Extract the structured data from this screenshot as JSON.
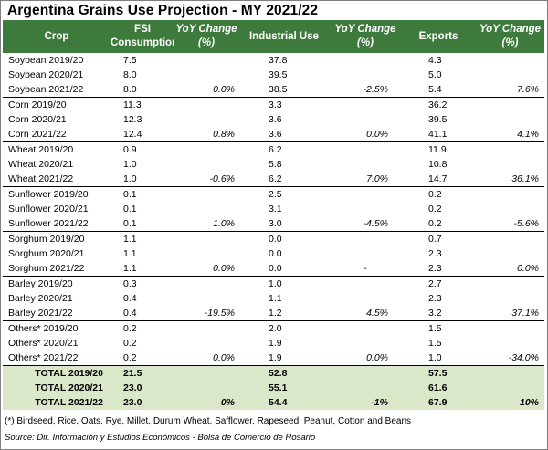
{
  "title": "Argentina Grains Use Projection - MY 2021/22",
  "headers": {
    "crop": "Crop",
    "fsi": "FSI Consumption",
    "fsi_yoy": "YoY Change (%)",
    "industrial": "Industrial Use",
    "industrial_yoy": "YoY Change (%)",
    "exports": "Exports",
    "exports_yoy": "YoY Change (%)"
  },
  "groups": [
    {
      "rows": [
        [
          "Soybean 2019/20",
          "7.5",
          "",
          "37.8",
          "",
          "4.3",
          ""
        ],
        [
          "Soybean 2020/21",
          "8.0",
          "",
          "39.5",
          "",
          "5.0",
          ""
        ],
        [
          "Soybean 2021/22",
          "8.0",
          "0.0%",
          "38.5",
          "-2.5%",
          "5.4",
          "7.6%"
        ]
      ]
    },
    {
      "rows": [
        [
          "Corn 2019/20",
          "11.3",
          "",
          "3.3",
          "",
          "36.2",
          ""
        ],
        [
          "Corn 2020/21",
          "12.3",
          "",
          "3.6",
          "",
          "39.5",
          ""
        ],
        [
          "Corn 2021/22",
          "12.4",
          "0.8%",
          "3.6",
          "0.0%",
          "41.1",
          "4.1%"
        ]
      ]
    },
    {
      "rows": [
        [
          "Wheat 2019/20",
          "0.9",
          "",
          "6.2",
          "",
          "11.9",
          ""
        ],
        [
          "Wheat 2020/21",
          "1.0",
          "",
          "5.8",
          "",
          "10.8",
          ""
        ],
        [
          "Wheat 2021/22",
          "1.0",
          "-0.6%",
          "6.2",
          "7.0%",
          "14.7",
          "36.1%"
        ]
      ]
    },
    {
      "rows": [
        [
          "Sunflower 2019/20",
          "0.1",
          "",
          "2.5",
          "",
          "0.2",
          ""
        ],
        [
          "Sunflower 2020/21",
          "0.1",
          "",
          "3.1",
          "",
          "0.2",
          ""
        ],
        [
          "Sunflower 2021/22",
          "0.1",
          "1.0%",
          "3.0",
          "-4.5%",
          "0.2",
          "-5.6%"
        ]
      ]
    },
    {
      "rows": [
        [
          "Sorghum 2019/20",
          "1.1",
          "",
          "0.0",
          "",
          "0.7",
          ""
        ],
        [
          "Sorghum 2020/21",
          "1.1",
          "",
          "0.0",
          "",
          "2.3",
          ""
        ],
        [
          "Sorghum 2021/22",
          "1.1",
          "0.0%",
          "0.0",
          "-",
          "2.3",
          "0.0%"
        ]
      ]
    },
    {
      "rows": [
        [
          "Barley 2019/20",
          "0.3",
          "",
          "1.0",
          "",
          "2.7",
          ""
        ],
        [
          "Barley 2020/21",
          "0.4",
          "",
          "1.1",
          "",
          "2.3",
          ""
        ],
        [
          "Barley 2021/22",
          "0.4",
          "-19.5%",
          "1.2",
          "4.5%",
          "3.2",
          "37.1%"
        ]
      ]
    },
    {
      "rows": [
        [
          "Others* 2019/20",
          "0.2",
          "",
          "2.0",
          "",
          "1.5",
          ""
        ],
        [
          "Others* 2020/21",
          "0.2",
          "",
          "1.9",
          "",
          "1.5",
          ""
        ],
        [
          "Others* 2021/22",
          "0.2",
          "0.0%",
          "1.9",
          "0.0%",
          "1.0",
          "-34.0%"
        ]
      ]
    }
  ],
  "totals": [
    [
      "TOTAL 2019/20",
      "21.5",
      "",
      "52.8",
      "",
      "57.5",
      ""
    ],
    [
      "TOTAL 2020/21",
      "23.0",
      "",
      "55.1",
      "",
      "61.6",
      ""
    ],
    [
      "TOTAL 2021/22",
      "23.0",
      "0%",
      "54.4",
      "-1%",
      "67.9",
      "10%"
    ]
  ],
  "footnote": "(*) Birdseed, Rice, Oats, Rye, Millet, Durum Wheat, Safflower, Rapeseed, Peanut, Cotton and Beans",
  "source": "Source: Dir. Información y Estudios Económicos - Bolsa de Comercio de Rosario",
  "colors": {
    "header_bg": "#3d7a3c",
    "header_text": "#ffffff",
    "total_bg": "#dbe7c9"
  }
}
